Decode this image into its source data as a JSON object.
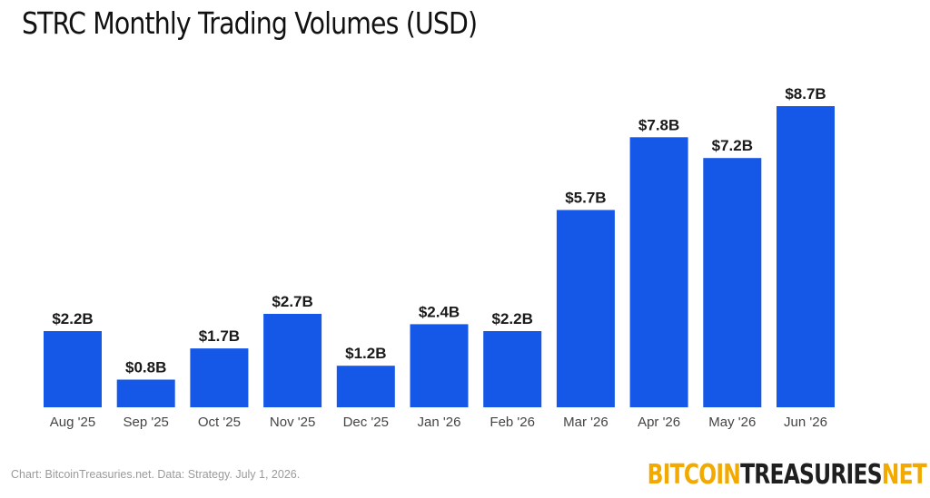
{
  "title": "STRC Monthly Trading Volumes (USD)",
  "footnote": "Chart: BitcoinTreasuries.net. Data: Strategy. July 1, 2026.",
  "logo": {
    "part1": "BITCOIN",
    "part2": "TREASURIES",
    "part3": "NET"
  },
  "colors": {
    "bar": "#1557e6",
    "logo_accent": "#f2a900",
    "logo_dark": "#1f1f1f"
  },
  "chart_data": {
    "type": "bar",
    "title": "STRC Monthly Trading Volumes (USD)",
    "xlabel": "",
    "ylabel": "",
    "categories": [
      "Aug '25",
      "Sep '25",
      "Oct '25",
      "Nov '25",
      "Dec '25",
      "Jan '26",
      "Feb '26",
      "Mar '26",
      "Apr '26",
      "May '26",
      "Jun '26"
    ],
    "values": [
      2.2,
      0.8,
      1.7,
      2.7,
      1.2,
      2.4,
      2.2,
      5.7,
      7.8,
      7.2,
      8.7
    ],
    "labels": [
      "$2.2B",
      "$0.8B",
      "$1.7B",
      "$2.7B",
      "$1.2B",
      "$2.4B",
      "$2.2B",
      "$5.7B",
      "$7.8B",
      "$7.2B",
      "$8.7B"
    ],
    "ylim": [
      0,
      8.7
    ],
    "grid": false,
    "legend": "none"
  }
}
